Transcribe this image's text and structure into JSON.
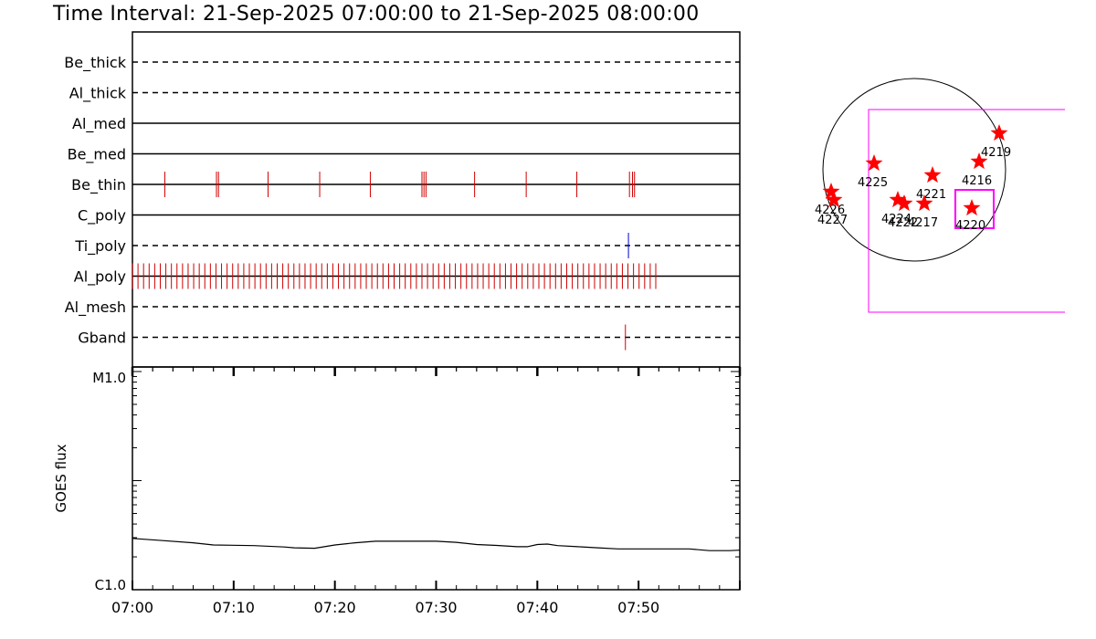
{
  "title": "Time Interval: 21-Sep-2025 07:00:00 to 21-Sep-2025 08:00:00",
  "chart_data": [
    {
      "type": "event-timeline",
      "x_range": [
        "07:00",
        "08:00"
      ],
      "x_tick_labels": [
        "07:00",
        "07:10",
        "07:20",
        "07:30",
        "07:40",
        "07:50"
      ],
      "rows": [
        {
          "name": "Be_thick",
          "style": "dashed",
          "events": [],
          "color": "#d00000"
        },
        {
          "name": "Al_thick",
          "style": "dashed",
          "events": [],
          "color": "#d00000"
        },
        {
          "name": "Al_med",
          "style": "solid",
          "events": [],
          "color": "#d00000"
        },
        {
          "name": "Be_med",
          "style": "solid",
          "events": [],
          "color": "#d00000"
        },
        {
          "name": "Be_thin",
          "style": "solid",
          "color": "#d00000",
          "events": [
            3.2,
            8.3,
            8.5,
            13.4,
            18.5,
            23.5,
            28.6,
            28.8,
            29.0,
            33.8,
            38.9,
            43.9,
            49.1,
            49.4,
            49.6
          ]
        },
        {
          "name": "C_poly",
          "style": "solid",
          "events": [],
          "color": "#d00000"
        },
        {
          "name": "Ti_poly",
          "style": "dashed",
          "color": "#0000cc",
          "events": [
            49.0
          ]
        },
        {
          "name": "Al_poly",
          "style": "solid",
          "color": "#d00000",
          "dense": true,
          "dense_start": 0.0,
          "dense_end": 52.2,
          "dense_step": 0.55
        },
        {
          "name": "Al_mesh",
          "style": "dashed",
          "events": [],
          "color": "#d00000"
        },
        {
          "name": "Gband",
          "style": "dashed",
          "color": "#d00000",
          "events": [
            48.7
          ]
        }
      ]
    },
    {
      "type": "line",
      "ylabel": "GOES flux",
      "y_tick_labels": [
        "M1.0",
        "C1.0"
      ],
      "yscale": "log",
      "ylim": [
        "C1.0",
        "M1.0"
      ],
      "x_minutes": [
        0,
        3,
        6,
        8,
        12,
        15,
        16,
        18,
        20,
        22,
        24,
        26,
        28,
        30,
        32,
        34,
        36,
        38,
        39,
        40,
        41,
        42,
        44,
        46,
        48,
        50,
        52,
        55,
        57,
        59,
        60
      ],
      "y_fraction_of_decade": [
        0.235,
        0.225,
        0.215,
        0.205,
        0.202,
        0.196,
        0.192,
        0.19,
        0.205,
        0.215,
        0.222,
        0.222,
        0.222,
        0.222,
        0.217,
        0.207,
        0.203,
        0.197,
        0.197,
        0.207,
        0.209,
        0.202,
        0.197,
        0.192,
        0.187,
        0.187,
        0.187,
        0.187,
        0.179,
        0.179,
        0.181
      ]
    },
    {
      "type": "scatter",
      "title": "",
      "markers": [
        {
          "label": "4219",
          "color": "#ff0000"
        },
        {
          "label": "4216",
          "color": "#ff0000"
        },
        {
          "label": "4225",
          "color": "#ff0000"
        },
        {
          "label": "4221",
          "color": "#ff0000"
        },
        {
          "label": "4226",
          "color": "#ff0000"
        },
        {
          "label": "4227",
          "color": "#ff0000"
        },
        {
          "label": "4224",
          "color": "#ff0000"
        },
        {
          "label": "4222",
          "color": "#ff0000"
        },
        {
          "label": "4217",
          "color": "#ff0000"
        },
        {
          "label": "4220",
          "color": "#ff0000"
        }
      ],
      "box_color": "#ff00ff",
      "disk_color": "#000000"
    }
  ]
}
